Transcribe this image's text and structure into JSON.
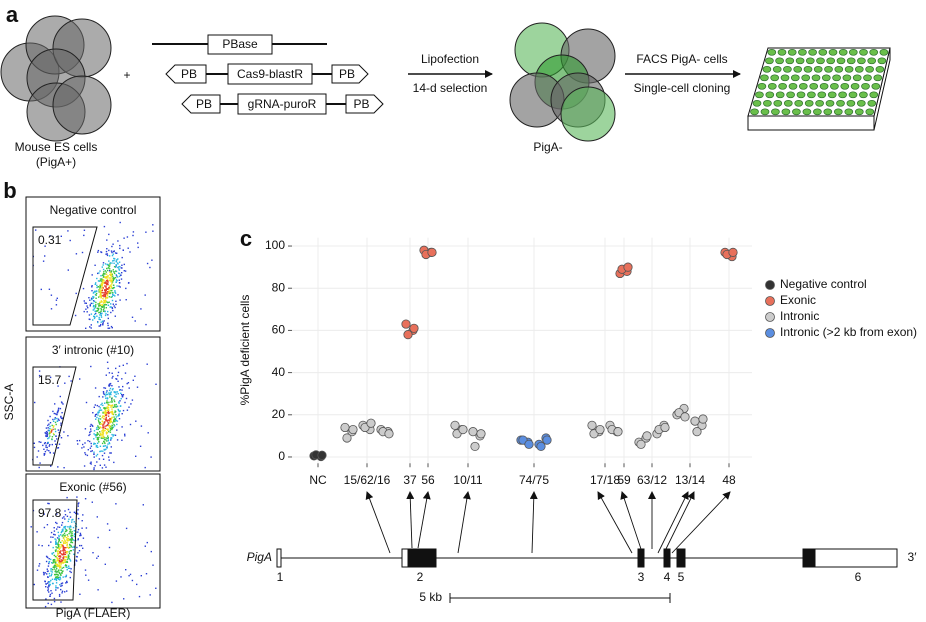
{
  "panel_a": {
    "label": "a",
    "source_cells": [
      "Mouse ES cells",
      "(PigA+)"
    ],
    "plus": "+",
    "pbase": "PBase",
    "cas9_construct": {
      "left": "PB",
      "cassette": "Cas9-blastR",
      "right": "PB"
    },
    "grna_construct": {
      "left": "PB",
      "cassette": "gRNA-puroR",
      "right": "PB"
    },
    "step1": [
      "Lipofection",
      "14-d selection"
    ],
    "result_cells": "PigA-",
    "step2": [
      "FACS PigA- cells",
      "Single-cell cloning"
    ]
  },
  "panel_b": {
    "label": "b",
    "y_label": "SSC-A",
    "x_label": "PigA (FLAER)",
    "plots": [
      {
        "title": "Negative control",
        "gate_value": 0.31
      },
      {
        "title": "3′ intronic (#10)",
        "gate_value": 15.7
      },
      {
        "title": "Exonic (#56)",
        "gate_value": 97.8
      }
    ]
  },
  "chart_data": {
    "type": "scatter",
    "panel_label": "c",
    "y_label": "%PigA deficient cells",
    "categories": [
      "NC",
      "15/62/16",
      "37",
      "56",
      "10/11",
      "74/75",
      "17/18",
      "59",
      "63/12",
      "13/14",
      "48"
    ],
    "ylim": [
      -3,
      104
    ],
    "yticks": [
      0,
      20,
      40,
      60,
      80,
      100
    ],
    "grid": true,
    "legend": "right",
    "series": [
      {
        "name": "Negative control",
        "color": "#333333",
        "values": [
          [
            [
              0.5,
              0.2,
              1,
              0.8
            ]
          ],
          null,
          null,
          null,
          null,
          null,
          null,
          null,
          null,
          null,
          null
        ]
      },
      {
        "name": "Exonic",
        "color": "#e8705b",
        "values": [
          null,
          null,
          [
            [
              63,
              60,
              58,
              61
            ]
          ],
          [
            [
              98,
              97,
              96,
              97
            ]
          ],
          null,
          null,
          null,
          [
            [
              87,
              88,
              89,
              90
            ]
          ],
          null,
          null,
          [
            [
              97,
              95,
              96,
              97
            ]
          ]
        ]
      },
      {
        "name": "Intronic",
        "color": "#cccccc",
        "values": [
          null,
          [
            [
              14,
              12,
              9,
              13
            ],
            [
              15,
              13,
              14,
              16
            ],
            [
              13,
              12,
              12,
              11
            ]
          ],
          null,
          null,
          [
            [
              15,
              13,
              11,
              13
            ],
            [
              12,
              10,
              5,
              11
            ]
          ],
          null,
          [
            [
              15,
              12,
              11,
              13
            ],
            [
              15,
              12,
              13,
              12
            ]
          ],
          null,
          [
            [
              7,
              9,
              6,
              10
            ],
            [
              11,
              15,
              13,
              14
            ]
          ],
          [
            [
              20,
              23,
              21,
              19
            ],
            [
              17,
              15,
              12,
              18
            ]
          ],
          null
        ]
      },
      {
        "name": "Intronic (>2 kb from exon)",
        "color": "#5b8ee0",
        "values": [
          null,
          null,
          null,
          null,
          null,
          [
            [
              8,
              7,
              8,
              6
            ],
            [
              6,
              9,
              5,
              8
            ]
          ],
          null,
          null,
          null,
          null,
          null
        ]
      }
    ]
  },
  "gene": {
    "name": "PigA",
    "exons": [
      "1",
      "2",
      "3",
      "4",
      "5",
      "6"
    ],
    "end": "3′",
    "scale": "5 kb"
  }
}
